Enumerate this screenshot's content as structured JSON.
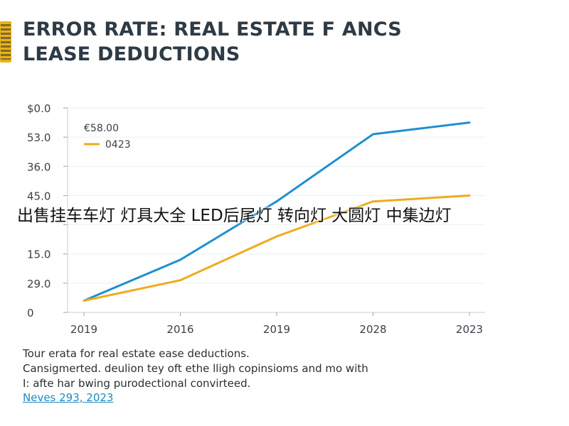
{
  "header": {
    "logo_text": "NEWS",
    "title": "ERROR RATE: REAL ESTATE F ANCS LEASE DEDUCTIONS"
  },
  "chart_data": {
    "type": "line",
    "title": "ERROR RATE: REAL ESTATE F ANCS LEASE DEDUCTIONS",
    "categories": [
      "2019",
      "2016",
      "2019",
      "2028",
      "2023"
    ],
    "y_tick_labels": [
      "0",
      "29.0",
      "15.0",
      "",
      "45.0",
      "36.0",
      "53.0",
      "$0.0"
    ],
    "ylim": [
      0,
      70
    ],
    "grid": true,
    "legend_position": "top-left",
    "series": [
      {
        "name": "€58.00",
        "color": "#1e8fd0",
        "values": [
          4,
          18,
          38,
          61,
          65
        ]
      },
      {
        "name": "0423",
        "color": "#efab1f",
        "values": [
          4,
          11,
          26,
          38,
          40
        ]
      }
    ]
  },
  "overlay": {
    "text": "出售挂车车灯 灯具大全 LED后尾灯 转向灯 大圆灯 中集边灯"
  },
  "caption": {
    "line1": "Tour erata for real estate ease deductions.",
    "line2": "Cansigmerted. deulion tey oft ethe lligh copinsioms and mo with",
    "line3": "I: afte har bwing purodectional convirteed.",
    "source": "Neves 293, 2023"
  }
}
